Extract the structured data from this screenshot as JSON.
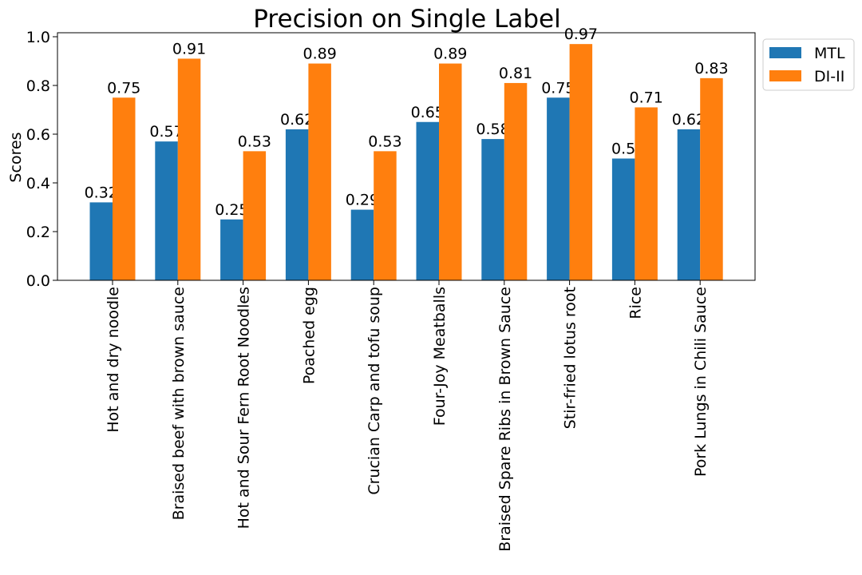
{
  "chart_data": {
    "type": "bar",
    "title": "Precision on Single Label",
    "xlabel": "",
    "ylabel": "Scores",
    "ylim": [
      0,
      1.0
    ],
    "yticks": [
      "0.0",
      "0.2",
      "0.4",
      "0.6",
      "0.8",
      "1.0"
    ],
    "categories": [
      "Hot and dry noodle",
      "Braised beef with brown sauce",
      "Hot and Sour Fern Root Noodles",
      "Poached egg",
      "Crucian Carp and tofu soup",
      "Four-Joy Meatballs",
      "Braised Spare Ribs in Brown Sauce",
      "Stir-fried lotus root",
      "Rice",
      "Pork Lungs in Chili Sauce"
    ],
    "series": [
      {
        "name": "MTL",
        "color": "#1f77b4",
        "values": [
          0.32,
          0.57,
          0.25,
          0.62,
          0.29,
          0.65,
          0.58,
          0.75,
          0.5,
          0.62
        ],
        "labels": [
          "0.32",
          "0.57",
          "0.25",
          "0.62",
          "0.29",
          "0.65",
          "0.58",
          "0.75",
          "0.5",
          "0.62"
        ]
      },
      {
        "name": "DI-II",
        "color": "#ff7f0e",
        "values": [
          0.75,
          0.91,
          0.53,
          0.89,
          0.53,
          0.89,
          0.81,
          0.97,
          0.71,
          0.83
        ],
        "labels": [
          "0.75",
          "0.91",
          "0.53",
          "0.89",
          "0.53",
          "0.89",
          "0.81",
          "0.97",
          "0.71",
          "0.83"
        ]
      }
    ],
    "grid": false,
    "legend_position": "upper-right-outside"
  }
}
